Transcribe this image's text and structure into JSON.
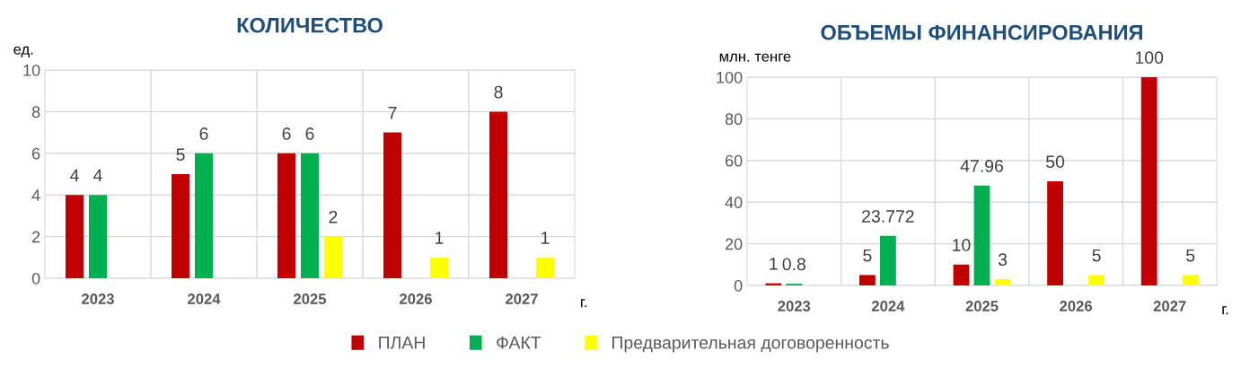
{
  "chart_data": [
    {
      "type": "bar",
      "title": "КОЛИЧЕСТВО",
      "ylabel": "ед.",
      "xlabel": "г.",
      "categories": [
        "2023",
        "2024",
        "2025",
        "2026",
        "2027"
      ],
      "series": [
        {
          "name": "ПЛАН",
          "color": "#c00000",
          "values": [
            4,
            5,
            6,
            7,
            8
          ]
        },
        {
          "name": "ФАКТ",
          "color": "#00b050",
          "values": [
            4,
            6,
            6,
            null,
            null
          ]
        },
        {
          "name": "Предварительная договоренность",
          "color": "#ffff00",
          "values": [
            null,
            null,
            2,
            1,
            1
          ]
        }
      ],
      "ylim": [
        0,
        10
      ],
      "yticks": [
        0,
        2,
        4,
        6,
        8,
        10
      ],
      "grid": true,
      "data_labels": true,
      "legend": "bottom"
    },
    {
      "type": "bar",
      "title": "ОБЪЕМЫ ФИНАНСИРОВАНИЯ",
      "ylabel": "млн. тенге",
      "xlabel": "г.",
      "categories": [
        "2023",
        "2024",
        "2025",
        "2026",
        "2027"
      ],
      "series": [
        {
          "color": "#c00000",
          "values": [
            1,
            5,
            10,
            50,
            100
          ]
        },
        {
          "color": "#00b050",
          "values": [
            0.8,
            23.772,
            47.96,
            null,
            null
          ]
        },
        {
          "color": "#ffff00",
          "values": [
            null,
            null,
            3,
            5,
            5
          ]
        }
      ],
      "ylim": [
        0,
        100
      ],
      "yticks": [
        0,
        20,
        40,
        60,
        80,
        100
      ],
      "grid": true,
      "data_labels": true
    }
  ]
}
